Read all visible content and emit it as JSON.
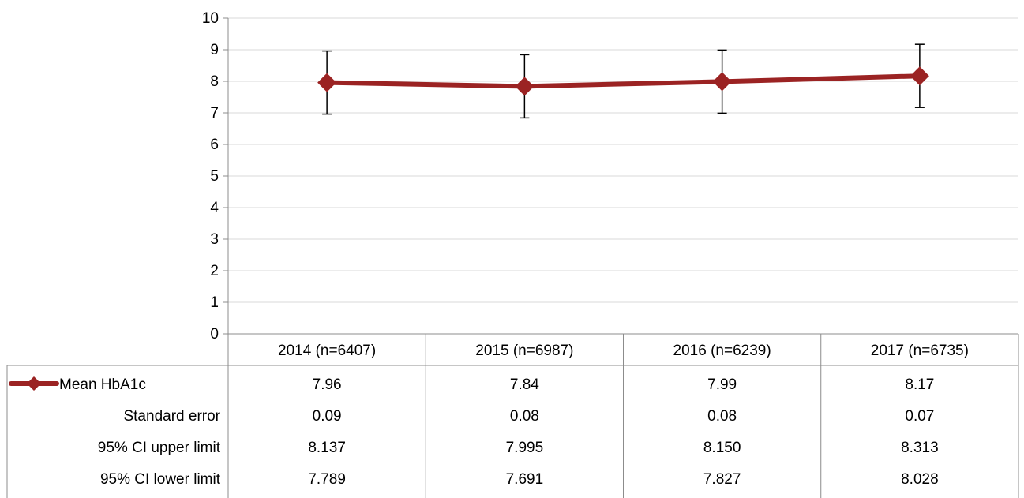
{
  "chart_data": {
    "type": "line",
    "categories": [
      "2014 (n=6407)",
      "2015 (n=6987)",
      "2016 (n=6239)",
      "2017 (n=6735)"
    ],
    "series": [
      {
        "name": "Mean HbA1c",
        "values": [
          7.96,
          7.84,
          7.99,
          8.17
        ],
        "color": "#9b2323",
        "error_bars": {
          "plus": [
            1,
            1,
            1,
            1
          ],
          "minus": [
            1,
            1,
            1,
            1
          ]
        }
      }
    ],
    "ylim": [
      0,
      10
    ],
    "yticks": [
      0,
      1,
      2,
      3,
      4,
      5,
      6,
      7,
      8,
      9,
      10
    ],
    "grid": true,
    "legend": "data-table",
    "data_table": {
      "rows": [
        {
          "label": "Mean HbA1c",
          "values": [
            "7.96",
            "7.84",
            "7.99",
            "8.17"
          ],
          "legend_key": true
        },
        {
          "label": "Standard error",
          "values": [
            "0.09",
            "0.08",
            "0.08",
            "0.07"
          ]
        },
        {
          "label": "95% CI upper limit",
          "values": [
            "8.137",
            "7.995",
            "8.150",
            "8.313"
          ]
        },
        {
          "label": "95% CI lower limit",
          "values": [
            "7.789",
            "7.691",
            "7.827",
            "8.028"
          ]
        }
      ]
    },
    "title": "",
    "xlabel": "",
    "ylabel": ""
  }
}
